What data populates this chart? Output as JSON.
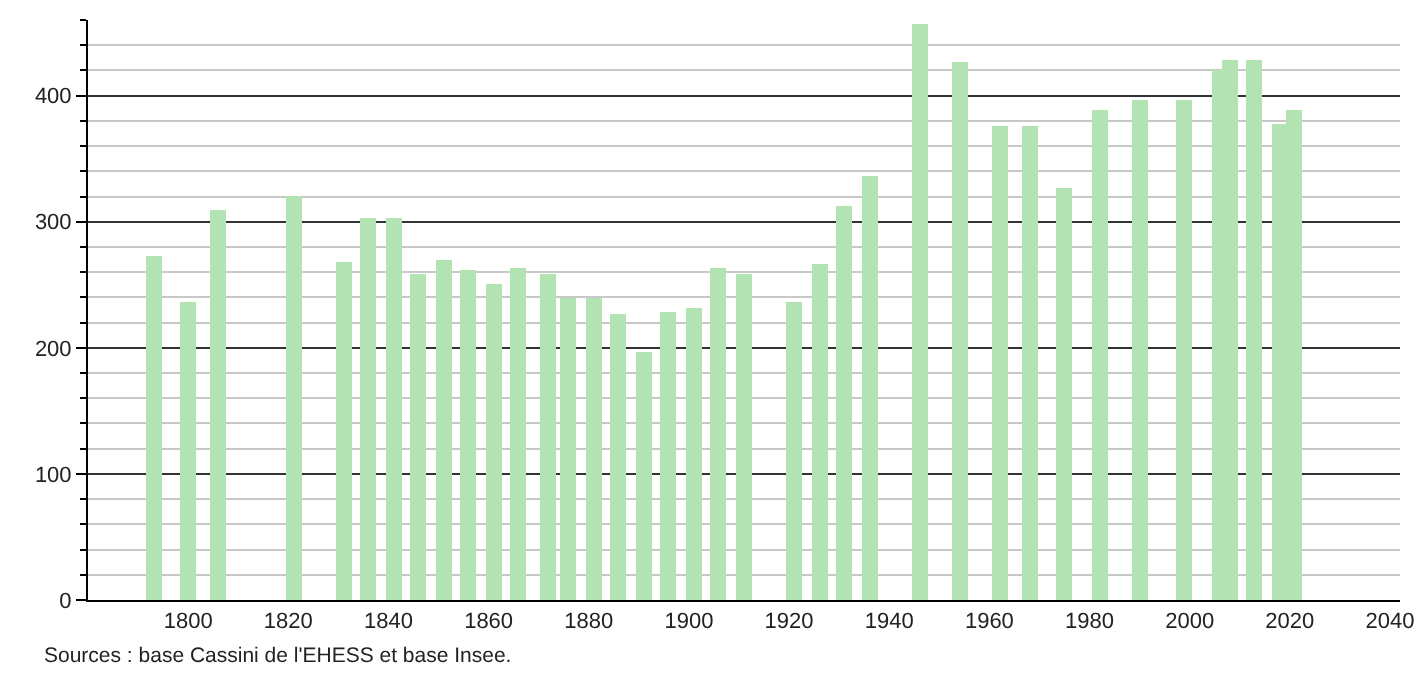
{
  "chart_data": {
    "type": "bar",
    "x": [
      1793,
      1800,
      1806,
      1821,
      1831,
      1836,
      1841,
      1846,
      1851,
      1856,
      1861,
      1866,
      1872,
      1876,
      1881,
      1886,
      1891,
      1896,
      1901,
      1906,
      1911,
      1921,
      1926,
      1931,
      1936,
      1946,
      1954,
      1962,
      1968,
      1975,
      1982,
      1990,
      1999,
      2006,
      2008,
      2013,
      2018,
      2021
    ],
    "values": [
      273,
      237,
      310,
      321,
      268,
      303,
      303,
      258,
      270,
      262,
      250,
      264,
      258,
      239,
      239,
      227,
      197,
      229,
      232,
      264,
      258,
      237,
      267,
      312,
      337,
      457,
      427,
      376,
      376,
      327,
      389,
      397,
      396,
      421,
      429,
      429,
      378,
      389
    ],
    "color": "#b3e3b3",
    "xlim": [
      1780,
      2042
    ],
    "xticks": [
      1800,
      1820,
      1840,
      1860,
      1880,
      1900,
      1920,
      1940,
      1960,
      1980,
      2000,
      2020,
      2040
    ],
    "ylim": [
      0,
      460
    ],
    "yticks": [
      0,
      {
        "value": 20,
        "label": null
      },
      {
        "value": 40,
        "label": null
      },
      {
        "value": 60,
        "label": null
      },
      {
        "value": 80,
        "label": null
      },
      100,
      {
        "value": 120,
        "label": null
      },
      {
        "value": 140,
        "label": null
      },
      {
        "value": 160,
        "label": null
      },
      {
        "value": 180,
        "label": null
      },
      200,
      {
        "value": 220,
        "label": null
      },
      {
        "value": 240,
        "label": null
      },
      {
        "value": 260,
        "label": null
      },
      {
        "value": 280,
        "label": null
      },
      300,
      {
        "value": 320,
        "label": null
      },
      {
        "value": 340,
        "label": null
      },
      {
        "value": 360,
        "label": null
      },
      {
        "value": 380,
        "label": null
      },
      400,
      {
        "value": 420,
        "label": null
      },
      {
        "value": 440,
        "label": null
      },
      {
        "value": 460,
        "label": null
      }
    ],
    "grid": "y",
    "annotations": [
      "Sources : base Cassini de l'EHESS et base Insee."
    ]
  }
}
